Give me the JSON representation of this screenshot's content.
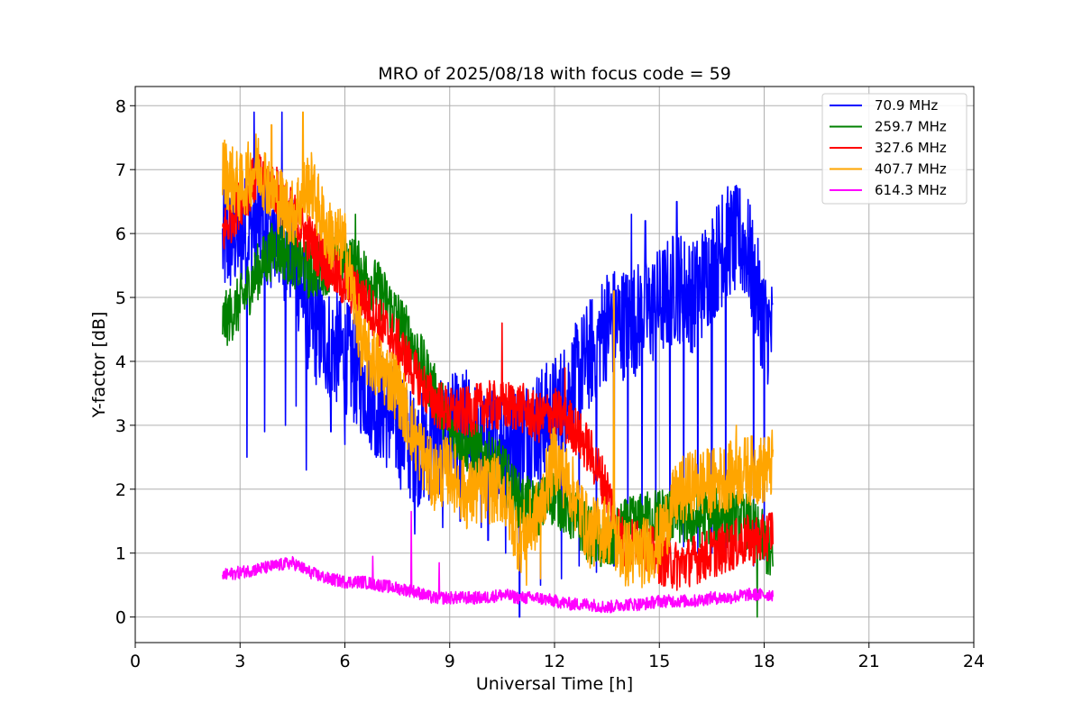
{
  "chart_data": {
    "type": "line",
    "title": "MRO of 2025/08/18 with focus code = 59",
    "xlabel": "Universal Time [h]",
    "ylabel": "Y-factor [dB]",
    "xlim": [
      0,
      24
    ],
    "ylim": [
      -0.4,
      8.3
    ],
    "xticks": [
      0,
      3,
      6,
      9,
      12,
      15,
      18,
      21,
      24
    ],
    "yticks": [
      0,
      1,
      2,
      3,
      4,
      5,
      6,
      7,
      8
    ],
    "grid": true,
    "legend_position": "upper right",
    "series": [
      {
        "name": " 70.9 MHz",
        "color": "#0000ff",
        "noise": 0.9,
        "x": [
          2.5,
          3.0,
          3.5,
          4.0,
          4.5,
          5.0,
          5.5,
          6.0,
          6.5,
          7.0,
          7.5,
          8.0,
          8.5,
          9.0,
          9.5,
          10.0,
          10.5,
          11.0,
          11.5,
          12.0,
          12.5,
          13.0,
          13.5,
          14.0,
          14.5,
          15.0,
          15.5,
          16.0,
          16.5,
          17.0,
          17.5,
          18.0,
          18.25
        ],
        "y": [
          5.8,
          6.0,
          6.2,
          6.0,
          5.7,
          4.6,
          4.3,
          4.1,
          3.7,
          3.3,
          3.0,
          2.6,
          2.7,
          2.9,
          3.0,
          2.6,
          2.8,
          2.8,
          3.0,
          3.2,
          3.6,
          4.1,
          4.6,
          4.6,
          4.7,
          4.9,
          5.2,
          5.0,
          5.5,
          5.9,
          5.8,
          4.6,
          4.4
        ],
        "dips": [
          [
            3.2,
            2.5
          ],
          [
            3.7,
            2.9
          ],
          [
            4.3,
            3.0
          ],
          [
            4.6,
            3.3
          ],
          [
            4.9,
            2.3
          ],
          [
            5.6,
            2.9
          ],
          [
            6.0,
            2.7
          ],
          [
            6.9,
            2.5
          ],
          [
            7.6,
            2.0
          ],
          [
            8.0,
            1.3
          ],
          [
            8.8,
            1.4
          ],
          [
            9.3,
            1.5
          ],
          [
            9.9,
            1.4
          ],
          [
            10.1,
            1.2
          ],
          [
            10.6,
            1.0
          ],
          [
            11.0,
            0.0
          ],
          [
            11.6,
            0.5
          ],
          [
            12.2,
            0.6
          ],
          [
            12.7,
            0.8
          ],
          [
            13.2,
            0.7
          ],
          [
            13.7,
            0.8
          ],
          [
            14.1,
            1.0
          ],
          [
            14.5,
            1.1
          ],
          [
            14.9,
            1.2
          ],
          [
            15.3,
            1.0
          ],
          [
            15.7,
            1.1
          ],
          [
            16.1,
            1.0
          ],
          [
            16.5,
            1.0
          ],
          [
            16.9,
            0.9
          ],
          [
            17.3,
            0.7
          ],
          [
            17.7,
            0.8
          ],
          [
            18.0,
            0.9
          ]
        ],
        "spikes": [
          [
            3.4,
            7.9
          ],
          [
            4.2,
            7.9
          ],
          [
            14.2,
            6.3
          ],
          [
            14.6,
            6.2
          ],
          [
            15.5,
            6.5
          ],
          [
            16.8,
            6.6
          ],
          [
            17.3,
            6.7
          ]
        ]
      },
      {
        "name": "259.7 MHz",
        "color": "#008000",
        "noise": 0.45,
        "x": [
          2.5,
          3.0,
          3.5,
          4.0,
          4.5,
          5.0,
          5.5,
          6.0,
          6.5,
          7.0,
          7.5,
          8.0,
          8.5,
          9.0,
          9.5,
          10.0,
          10.5,
          11.0,
          11.5,
          12.0,
          12.5,
          13.0,
          13.5,
          14.0,
          14.5,
          15.0,
          15.5,
          16.0,
          16.5,
          17.0,
          17.5,
          18.0,
          18.25
        ],
        "y": [
          4.6,
          4.9,
          5.4,
          5.8,
          5.6,
          5.4,
          5.5,
          5.6,
          5.4,
          5.1,
          4.7,
          4.2,
          3.6,
          3.0,
          2.7,
          2.5,
          2.3,
          1.8,
          1.7,
          1.9,
          1.6,
          1.3,
          1.1,
          1.4,
          1.5,
          1.6,
          1.6,
          1.5,
          1.6,
          1.6,
          1.5,
          1.2,
          0.8
        ],
        "dips": [
          [
            17.8,
            0.0
          ]
        ],
        "spikes": [
          [
            4.2,
            6.3
          ],
          [
            6.3,
            6.3
          ]
        ]
      },
      {
        "name": "327.6 MHz",
        "color": "#ff0000",
        "noise": 0.4,
        "x": [
          2.5,
          3.0,
          3.5,
          4.0,
          4.5,
          5.0,
          5.5,
          6.0,
          6.5,
          7.0,
          7.5,
          8.0,
          8.5,
          9.0,
          9.5,
          10.0,
          10.5,
          11.0,
          11.5,
          12.0,
          12.5,
          13.0,
          13.5,
          14.0,
          14.5,
          15.0,
          15.5,
          16.0,
          16.5,
          17.0,
          17.5,
          18.0,
          18.25
        ],
        "y": [
          6.0,
          6.5,
          6.9,
          6.7,
          6.3,
          5.9,
          5.5,
          5.2,
          5.0,
          4.6,
          4.3,
          3.8,
          3.4,
          3.2,
          3.2,
          3.3,
          3.3,
          3.3,
          3.1,
          3.2,
          3.0,
          2.6,
          2.0,
          1.1,
          1.2,
          0.9,
          0.8,
          0.9,
          1.0,
          1.1,
          1.2,
          1.2,
          1.4
        ],
        "dips": [],
        "spikes": [
          [
            10.5,
            4.6
          ],
          [
            12.3,
            3.9
          ]
        ]
      },
      {
        "name": "407.7 MHz",
        "color": "#ffa500",
        "noise": 0.55,
        "x": [
          2.5,
          3.0,
          3.5,
          4.0,
          4.5,
          5.0,
          5.5,
          6.0,
          6.5,
          7.0,
          7.5,
          8.0,
          8.5,
          9.0,
          9.5,
          10.0,
          10.5,
          11.0,
          11.5,
          12.0,
          12.5,
          13.0,
          13.5,
          14.0,
          14.5,
          15.0,
          15.5,
          16.0,
          16.5,
          17.0,
          17.5,
          18.0,
          18.25
        ],
        "y": [
          7.0,
          6.7,
          7.1,
          6.6,
          6.3,
          6.8,
          6.0,
          5.8,
          4.2,
          3.9,
          3.6,
          2.8,
          2.2,
          2.3,
          1.9,
          2.0,
          2.0,
          1.2,
          1.6,
          2.5,
          2.0,
          1.3,
          1.4,
          1.0,
          1.0,
          1.2,
          1.9,
          2.1,
          2.1,
          2.2,
          2.3,
          2.3,
          2.4
        ],
        "dips": [
          [
            11.2,
            0.5
          ],
          [
            11.6,
            0.6
          ]
        ],
        "spikes": [
          [
            3.9,
            7.7
          ],
          [
            4.8,
            7.9
          ],
          [
            13.7,
            5.1
          ],
          [
            17.2,
            3.0
          ]
        ]
      },
      {
        "name": "614.3 MHz",
        "color": "#ff00ff",
        "noise": 0.1,
        "x": [
          2.5,
          3.0,
          3.5,
          4.0,
          4.5,
          5.0,
          5.5,
          6.0,
          6.5,
          7.0,
          7.5,
          8.0,
          8.5,
          9.0,
          9.5,
          10.0,
          10.5,
          11.0,
          11.5,
          12.0,
          12.5,
          13.0,
          13.5,
          14.0,
          14.5,
          15.0,
          15.5,
          16.0,
          16.5,
          17.0,
          17.5,
          18.0,
          18.25
        ],
        "y": [
          0.65,
          0.7,
          0.75,
          0.8,
          0.85,
          0.7,
          0.6,
          0.55,
          0.55,
          0.5,
          0.45,
          0.4,
          0.3,
          0.3,
          0.3,
          0.3,
          0.35,
          0.3,
          0.3,
          0.25,
          0.2,
          0.2,
          0.15,
          0.2,
          0.2,
          0.25,
          0.25,
          0.25,
          0.3,
          0.3,
          0.35,
          0.35,
          0.35
        ],
        "dips": [],
        "spikes": [
          [
            6.8,
            0.95
          ],
          [
            7.9,
            1.65
          ],
          [
            8.7,
            0.85
          ]
        ]
      }
    ]
  }
}
